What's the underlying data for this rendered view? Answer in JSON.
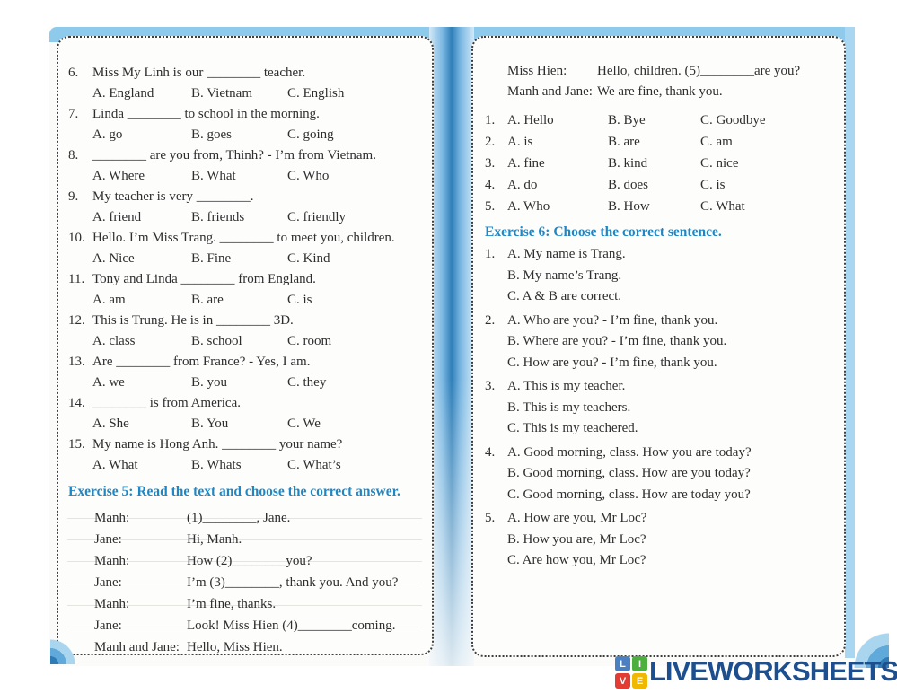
{
  "theme": {
    "heading_accent": "#1e87c5",
    "page_edge_blue": "#8ecaec",
    "spine_blue": "#2f7fb8",
    "text_color": "#2e2e2e",
    "logo_navy": "#1d4f8e"
  },
  "left_page": {
    "questions": [
      {
        "num": "6.",
        "text": "Miss My Linh is our ________ teacher.",
        "options": [
          "A. England",
          "B. Vietnam",
          "C. English"
        ]
      },
      {
        "num": "7.",
        "text": "Linda ________ to school in the morning.",
        "options": [
          "A. go",
          "B. goes",
          "C. going"
        ]
      },
      {
        "num": "8.",
        "text": "________ are you from, Thinh? - I’m from Vietnam.",
        "options": [
          "A. Where",
          "B. What",
          "C. Who"
        ]
      },
      {
        "num": "9.",
        "text": "My teacher is very ________.",
        "options": [
          "A. friend",
          "B. friends",
          "C. friendly"
        ]
      },
      {
        "num": "10.",
        "text": "Hello. I’m Miss Trang. ________ to meet you, children.",
        "options": [
          "A. Nice",
          "B. Fine",
          "C. Kind"
        ]
      },
      {
        "num": "11.",
        "text": "Tony and Linda ________ from England.",
        "options": [
          "A. am",
          "B. are",
          "C. is"
        ]
      },
      {
        "num": "12.",
        "text": "This is Trung. He is in ________ 3D.",
        "options": [
          "A. class",
          "B. school",
          "C. room"
        ]
      },
      {
        "num": "13.",
        "text": "Are ________ from France? - Yes, I am.",
        "options": [
          "A. we",
          "B. you",
          "C. they"
        ]
      },
      {
        "num": "14.",
        "text": "________ is from America.",
        "options": [
          "A. She",
          "B. You",
          "C. We"
        ]
      },
      {
        "num": "15.",
        "text": "My name is Hong Anh. ________ your name?",
        "options": [
          "A. What",
          "B. Whats",
          "C. What’s"
        ]
      }
    ],
    "exercise5": {
      "heading": "Exercise 5: Read the text and choose the correct answer.",
      "dialogue": [
        {
          "speaker": "Manh:",
          "line": "(1)________, Jane."
        },
        {
          "speaker": "Jane:",
          "line": "Hi, Manh."
        },
        {
          "speaker": "Manh:",
          "line": "How (2)________you?"
        },
        {
          "speaker": "Jane:",
          "line": "I’m (3)________, thank you. And you?"
        },
        {
          "speaker": "Manh:",
          "line": "I’m fine, thanks."
        },
        {
          "speaker": "Jane:",
          "line": "Look! Miss Hien (4)________coming."
        },
        {
          "speaker": "Manh and Jane:",
          "line": "Hello, Miss Hien."
        }
      ]
    }
  },
  "right_page": {
    "dialogue_continued": [
      {
        "speaker": "Miss Hien:",
        "line": "Hello, children. (5)________are you?"
      },
      {
        "speaker": "Manh and Jane:",
        "line": "We are fine, thank you."
      }
    ],
    "answer_rows": [
      {
        "num": "1.",
        "options": [
          "A. Hello",
          "B. Bye",
          "C. Goodbye"
        ]
      },
      {
        "num": "2.",
        "options": [
          "A. is",
          "B. are",
          "C. am"
        ]
      },
      {
        "num": "3.",
        "options": [
          "A. fine",
          "B. kind",
          "C. nice"
        ]
      },
      {
        "num": "4.",
        "options": [
          "A. do",
          "B. does",
          "C. is"
        ]
      },
      {
        "num": "5.",
        "options": [
          "A. Who",
          "B. How",
          "C. What"
        ]
      }
    ],
    "exercise6": {
      "heading": "Exercise 6: Choose the correct sentence.",
      "items": [
        {
          "num": "1.",
          "choices": [
            "A. My name is Trang.",
            "B. My name’s Trang.",
            "C. A & B are correct."
          ]
        },
        {
          "num": "2.",
          "choices": [
            "A. Who are you? - I’m fine, thank you.",
            "B. Where are you? - I’m fine, thank you.",
            "C. How are you? - I’m fine, thank you."
          ]
        },
        {
          "num": "3.",
          "choices": [
            "A. This is my teacher.",
            "B. This is my teachers.",
            "C. This is my teachered."
          ]
        },
        {
          "num": "4.",
          "choices": [
            "A. Good morning, class. How you are today?",
            "B. Good morning, class. How are you today?",
            "C. Good morning, class. How are today you?"
          ]
        },
        {
          "num": "5.",
          "choices": [
            "A. How are you, Mr Loc?",
            "B. How you are, Mr Loc?",
            "C. Are how you, Mr Loc?"
          ]
        }
      ]
    }
  },
  "branding": {
    "logo_text": "LIVEWORKSHEETS",
    "icon_squares": [
      {
        "letter": "L",
        "color": "#4a7fc1"
      },
      {
        "letter": "I",
        "color": "#4caf3e"
      },
      {
        "letter": "V",
        "color": "#e23c34"
      },
      {
        "letter": "E",
        "color": "#f0b800"
      }
    ]
  }
}
